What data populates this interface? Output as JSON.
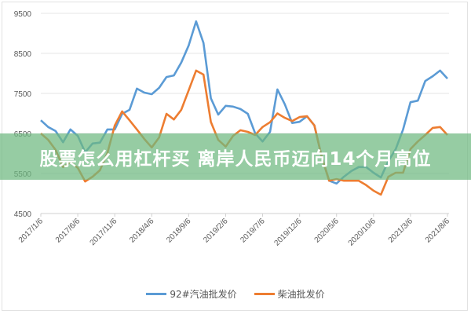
{
  "banner": {
    "text": "股票怎么用杠杆买 离岸人民币迈向14个月高位"
  },
  "chart_data": {
    "type": "line",
    "title": "",
    "xlabel": "",
    "ylabel": "",
    "ylim": [
      4500,
      9500
    ],
    "yticks": [
      "9500",
      "8500",
      "7500",
      "6500",
      "5500",
      "4500"
    ],
    "xtick_labels": [
      "2017/1/6",
      "2017/6/6",
      "2017/11/6",
      "2018/4/6",
      "2018/9/6",
      "2019/2/6",
      "2019/7/6",
      "2019/12/6",
      "2020/5/6",
      "2020/10/6",
      "2021/3/6",
      "2021/8/6"
    ],
    "grid": true,
    "legend": "bottom",
    "x": [
      "2017/1/6",
      "2017/2/6",
      "2017/3/6",
      "2017/4/6",
      "2017/5/6",
      "2017/6/6",
      "2017/7/6",
      "2017/8/6",
      "2017/9/6",
      "2017/10/6",
      "2017/11/6",
      "2017/12/6",
      "2018/1/6",
      "2018/2/6",
      "2018/3/6",
      "2018/4/6",
      "2018/5/6",
      "2018/6/6",
      "2018/7/6",
      "2018/8/6",
      "2018/9/6",
      "2018/10/6",
      "2018/11/6",
      "2018/12/6",
      "2019/1/6",
      "2019/2/6",
      "2019/3/6",
      "2019/4/6",
      "2019/5/6",
      "2019/6/6",
      "2019/7/6",
      "2019/8/6",
      "2019/9/6",
      "2019/10/6",
      "2019/11/6",
      "2019/12/6",
      "2020/1/6",
      "2020/2/6",
      "2020/3/6",
      "2020/4/6",
      "2020/5/6",
      "2020/6/6",
      "2020/7/6",
      "2020/8/6",
      "2020/9/6",
      "2020/10/6",
      "2020/11/6",
      "2020/12/6",
      "2021/1/6",
      "2021/2/6",
      "2021/3/6",
      "2021/4/6",
      "2021/5/6",
      "2021/6/6",
      "2021/7/6",
      "2021/8/6"
    ],
    "series": [
      {
        "name": "92#汽油批发价",
        "color": "#5b9bd5",
        "values": [
          6830,
          6660,
          6560,
          6280,
          6600,
          6440,
          6030,
          6250,
          6270,
          6600,
          6600,
          6990,
          7090,
          7620,
          7520,
          7480,
          7640,
          7910,
          7950,
          8270,
          8700,
          9300,
          8760,
          7380,
          6970,
          7190,
          7170,
          7110,
          6990,
          6500,
          6300,
          6540,
          7600,
          7230,
          6760,
          6790,
          6930,
          6700,
          5910,
          5320,
          5250,
          5420,
          5560,
          5660,
          5660,
          5520,
          5400,
          5810,
          6110,
          6600,
          7280,
          7320,
          7810,
          7930,
          8070,
          7870
        ]
      },
      {
        "name": "柴油批发价",
        "color": "#ed7d31",
        "values": [
          6500,
          6340,
          6090,
          5660,
          5780,
          5640,
          5300,
          5420,
          5580,
          6010,
          6700,
          7050,
          6830,
          6600,
          6360,
          6150,
          6400,
          6990,
          6850,
          7090,
          7580,
          8070,
          7970,
          6790,
          6340,
          6170,
          6440,
          6580,
          6540,
          6460,
          6660,
          6780,
          7000,
          6890,
          6810,
          6910,
          6930,
          6700,
          5910,
          5320,
          5360,
          5320,
          5320,
          5320,
          5210,
          5070,
          4970,
          5420,
          5520,
          5520,
          6110,
          6300,
          6460,
          6640,
          6660,
          6460
        ]
      }
    ]
  }
}
